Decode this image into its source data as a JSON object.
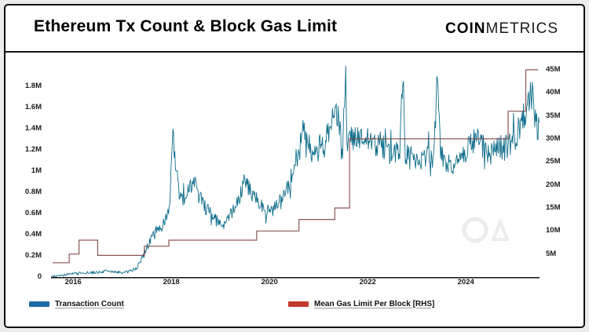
{
  "window": {
    "background": "#ececec",
    "card_border": "#101010"
  },
  "header": {
    "title": "Ethereum Tx Count & Block Gas Limit",
    "brand_bold": "COIN",
    "brand_light": "METRICS"
  },
  "watermark": {
    "name": "coinmetrics-mark"
  },
  "chart_data": {
    "type": "line",
    "title": "Ethereum Tx Count & Block Gas Limit",
    "grid": false,
    "legend_position": "bottom",
    "x_axis": {
      "range": [
        2015.55,
        2025.5
      ],
      "ticks": [
        {
          "label": "2016",
          "value": 2016
        },
        {
          "label": "2018",
          "value": 2018
        },
        {
          "label": "2020",
          "value": 2020
        },
        {
          "label": "2022",
          "value": 2022
        },
        {
          "label": "2024",
          "value": 2024
        }
      ]
    },
    "left_axis": {
      "title": "Transaction Count",
      "range": [
        0,
        2000000
      ],
      "ticks": [
        {
          "label": "0",
          "value": 0
        },
        {
          "label": "0.2M",
          "value": 200000
        },
        {
          "label": "0.4M",
          "value": 400000
        },
        {
          "label": "0.6M",
          "value": 600000
        },
        {
          "label": "0.8M",
          "value": 800000
        },
        {
          "label": "1M",
          "value": 1000000
        },
        {
          "label": "1.2M",
          "value": 1200000
        },
        {
          "label": "1.4M",
          "value": 1400000
        },
        {
          "label": "1.6M",
          "value": 1600000
        },
        {
          "label": "1.8M",
          "value": 1800000
        }
      ]
    },
    "right_axis": {
      "title": "Mean Gas Limit Per Block",
      "range": [
        0,
        46000000
      ],
      "ticks": [
        {
          "label": "5M",
          "value": 5000000
        },
        {
          "label": "10M",
          "value": 10000000
        },
        {
          "label": "15M",
          "value": 15000000
        },
        {
          "label": "20M",
          "value": 20000000
        },
        {
          "label": "25M",
          "value": 25000000
        },
        {
          "label": "30M",
          "value": 30000000
        },
        {
          "label": "35M",
          "value": 35000000
        },
        {
          "label": "40M",
          "value": 40000000
        },
        {
          "label": "45M",
          "value": 45000000
        }
      ]
    },
    "legend": [
      {
        "label": "Transaction Count",
        "color": "#1b6ca8"
      },
      {
        "label": "Mean Gas Limit Per Block [RHS]",
        "color": "#c0392b"
      }
    ],
    "series": [
      {
        "name": "Transaction Count",
        "axis": "left",
        "style": "noisy-line",
        "color": "#0f6e8c",
        "noise_rel": 0.09,
        "noise_abs": 9000,
        "points": [
          [
            2015.58,
            6000
          ],
          [
            2015.8,
            15000
          ],
          [
            2016.0,
            35000
          ],
          [
            2016.3,
            42000
          ],
          [
            2016.5,
            45000
          ],
          [
            2016.7,
            55000
          ],
          [
            2016.9,
            45000
          ],
          [
            2017.0,
            40000
          ],
          [
            2017.15,
            55000
          ],
          [
            2017.3,
            90000
          ],
          [
            2017.45,
            230000
          ],
          [
            2017.55,
            320000
          ],
          [
            2017.65,
            420000
          ],
          [
            2017.75,
            450000
          ],
          [
            2017.85,
            500000
          ],
          [
            2017.92,
            580000
          ],
          [
            2017.98,
            800000
          ],
          [
            2018.03,
            1350000
          ],
          [
            2018.08,
            1100000
          ],
          [
            2018.15,
            800000
          ],
          [
            2018.25,
            750000
          ],
          [
            2018.35,
            820000
          ],
          [
            2018.45,
            900000
          ],
          [
            2018.55,
            780000
          ],
          [
            2018.65,
            680000
          ],
          [
            2018.75,
            620000
          ],
          [
            2018.85,
            560000
          ],
          [
            2018.95,
            520000
          ],
          [
            2019.05,
            480000
          ],
          [
            2019.15,
            550000
          ],
          [
            2019.25,
            620000
          ],
          [
            2019.35,
            720000
          ],
          [
            2019.45,
            850000
          ],
          [
            2019.52,
            930000
          ],
          [
            2019.6,
            820000
          ],
          [
            2019.7,
            740000
          ],
          [
            2019.8,
            700000
          ],
          [
            2019.9,
            640000
          ],
          [
            2020.0,
            610000
          ],
          [
            2020.1,
            650000
          ],
          [
            2020.2,
            700000
          ],
          [
            2020.3,
            780000
          ],
          [
            2020.4,
            880000
          ],
          [
            2020.5,
            1050000
          ],
          [
            2020.6,
            1180000
          ],
          [
            2020.7,
            1400000
          ],
          [
            2020.78,
            1300000
          ],
          [
            2020.85,
            1200000
          ],
          [
            2020.95,
            1180000
          ],
          [
            2021.05,
            1250000
          ],
          [
            2021.15,
            1300000
          ],
          [
            2021.25,
            1400000
          ],
          [
            2021.33,
            1600000
          ],
          [
            2021.4,
            1500000
          ],
          [
            2021.48,
            1150000
          ],
          [
            2021.55,
            1920000
          ],
          [
            2021.58,
            1250000
          ],
          [
            2021.65,
            1300000
          ],
          [
            2021.75,
            1350000
          ],
          [
            2021.85,
            1280000
          ],
          [
            2021.95,
            1320000
          ],
          [
            2022.05,
            1280000
          ],
          [
            2022.15,
            1240000
          ],
          [
            2022.25,
            1270000
          ],
          [
            2022.35,
            1220000
          ],
          [
            2022.45,
            1180000
          ],
          [
            2022.55,
            1160000
          ],
          [
            2022.65,
            1200000
          ],
          [
            2022.72,
            1950000
          ],
          [
            2022.76,
            1180000
          ],
          [
            2022.85,
            1150000
          ],
          [
            2022.95,
            1080000
          ],
          [
            2023.05,
            1100000
          ],
          [
            2023.15,
            1130000
          ],
          [
            2023.25,
            1180000
          ],
          [
            2023.35,
            1220000
          ],
          [
            2023.42,
            1900000
          ],
          [
            2023.48,
            1150000
          ],
          [
            2023.58,
            1100000
          ],
          [
            2023.68,
            1060000
          ],
          [
            2023.78,
            1090000
          ],
          [
            2023.88,
            1130000
          ],
          [
            2023.98,
            1180000
          ],
          [
            2024.08,
            1240000
          ],
          [
            2024.18,
            1300000
          ],
          [
            2024.28,
            1260000
          ],
          [
            2024.38,
            1210000
          ],
          [
            2024.48,
            1170000
          ],
          [
            2024.58,
            1200000
          ],
          [
            2024.68,
            1240000
          ],
          [
            2024.78,
            1210000
          ],
          [
            2024.88,
            1250000
          ],
          [
            2024.98,
            1300000
          ],
          [
            2025.08,
            1380000
          ],
          [
            2025.18,
            1520000
          ],
          [
            2025.28,
            1680000
          ],
          [
            2025.35,
            1750000
          ],
          [
            2025.42,
            1500000
          ],
          [
            2025.47,
            1380000
          ]
        ]
      },
      {
        "name": "Mean Gas Limit Per Block [RHS]",
        "axis": "right",
        "style": "step",
        "color": "#7d4343",
        "points": [
          [
            2015.58,
            3100000
          ],
          [
            2015.9,
            3100000
          ],
          [
            2015.92,
            5000000
          ],
          [
            2016.1,
            5000000
          ],
          [
            2016.12,
            8000000
          ],
          [
            2016.48,
            8000000
          ],
          [
            2016.5,
            4700000
          ],
          [
            2017.42,
            4700000
          ],
          [
            2017.45,
            6700000
          ],
          [
            2017.92,
            6700000
          ],
          [
            2017.95,
            8000000
          ],
          [
            2019.7,
            8000000
          ],
          [
            2019.74,
            10000000
          ],
          [
            2020.55,
            10000000
          ],
          [
            2020.6,
            12500000
          ],
          [
            2021.3,
            12500000
          ],
          [
            2021.33,
            15000000
          ],
          [
            2021.6,
            15000000
          ],
          [
            2021.63,
            30000000
          ],
          [
            2024.82,
            30000000
          ],
          [
            2024.86,
            36000000
          ],
          [
            2025.18,
            36000000
          ],
          [
            2025.22,
            45000000
          ],
          [
            2025.47,
            45000000
          ]
        ]
      }
    ]
  }
}
